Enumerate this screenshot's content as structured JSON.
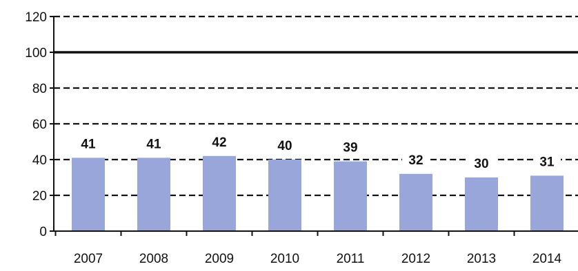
{
  "chart_data": {
    "type": "bar",
    "categories": [
      "2007",
      "2008",
      "2009",
      "2010",
      "2011",
      "2012",
      "2013",
      "2014"
    ],
    "values": [
      41,
      41,
      42,
      40,
      39,
      32,
      30,
      31
    ],
    "data_labels": [
      "41",
      "41",
      "42",
      "40",
      "39",
      "32",
      "30",
      "31"
    ],
    "title": "",
    "xlabel": "",
    "ylabel": "",
    "ylim": [
      0,
      120
    ],
    "yticks": [
      0,
      20,
      40,
      60,
      80,
      100,
      120
    ],
    "ytick_labels": [
      "0",
      "20",
      "40",
      "60",
      "80",
      "100",
      "120"
    ],
    "reference_line": 100,
    "grid": "dashed horizontal",
    "legend": "none",
    "colors": {
      "bar": "#98a6d9",
      "grid": "#111111",
      "axis": "#111111"
    }
  }
}
